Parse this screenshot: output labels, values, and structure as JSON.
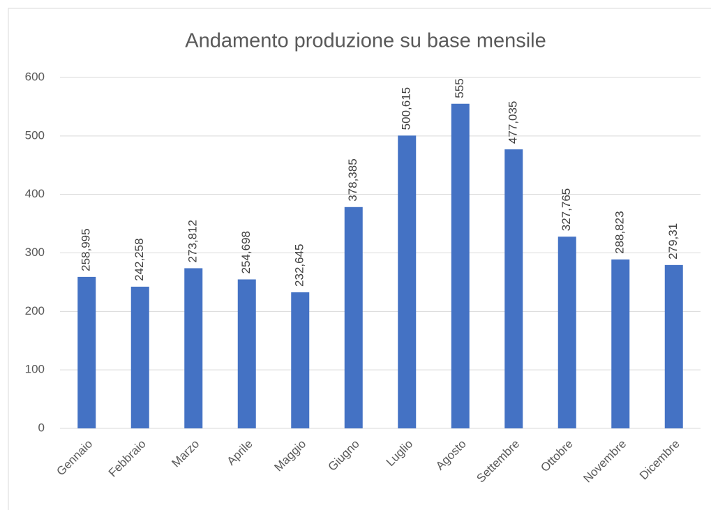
{
  "chart_data": {
    "type": "bar",
    "title": "Andamento produzione su base mensile",
    "categories": [
      "Gennaio",
      "Febbraio",
      "Marzo",
      "Aprile",
      "Maggio",
      "Giugno",
      "Luglio",
      "Agosto",
      "Settembre",
      "Ottobre",
      "Novembre",
      "Dicembre"
    ],
    "values": [
      258.995,
      242.258,
      273.812,
      254.698,
      232.645,
      378.385,
      500.615,
      555,
      477.035,
      327.765,
      288.823,
      279.31
    ],
    "value_labels": [
      "258,995",
      "242,258",
      "273,812",
      "254,698",
      "232,645",
      "378,385",
      "500,615",
      "555",
      "477,035",
      "327,765",
      "288,823",
      "279,31"
    ],
    "color": "#4472c4",
    "ylim": [
      0,
      600
    ],
    "yticks": [
      0,
      100,
      200,
      300,
      400,
      500,
      600
    ],
    "grid": true
  }
}
